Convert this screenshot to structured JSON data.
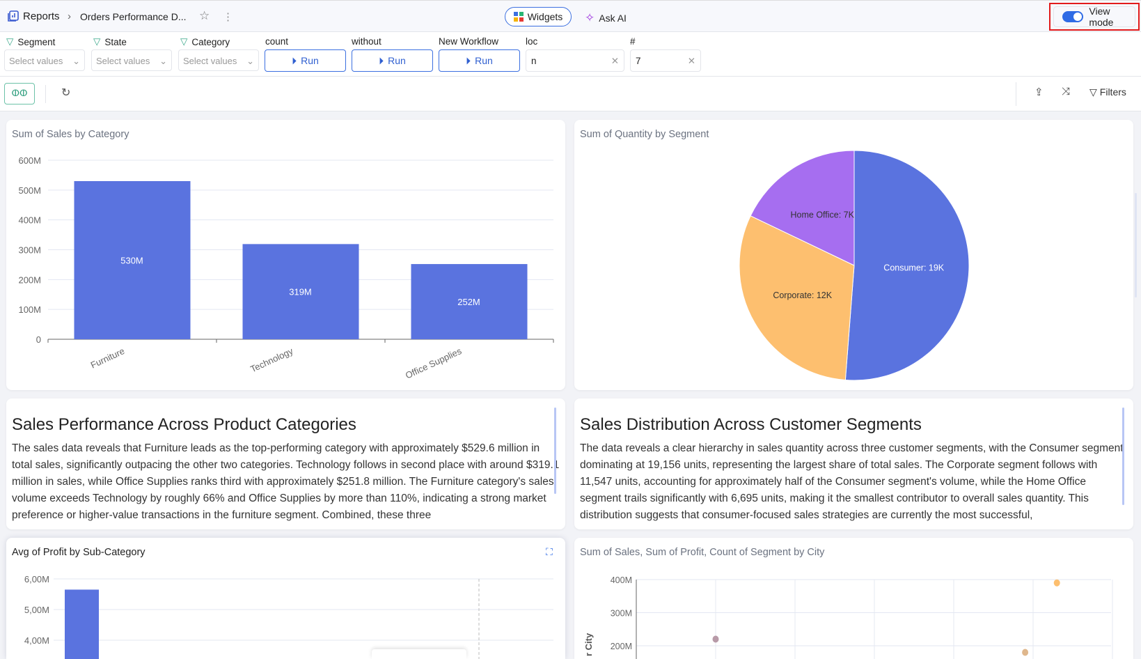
{
  "header": {
    "breadcrumb_root": "Reports",
    "breadcrumb_current": "Orders Performance D...",
    "widgets_label": "Widgets",
    "ask_ai_label": "Ask AI",
    "view_mode_label": "View mode",
    "view_mode_on": true
  },
  "filters": [
    {
      "label": "Segment",
      "placeholder": "Select values"
    },
    {
      "label": "State",
      "placeholder": "Select values"
    },
    {
      "label": "Category",
      "placeholder": "Select values"
    }
  ],
  "workflows": [
    {
      "label": "count",
      "button": "Run"
    },
    {
      "label": "without",
      "button": "Run"
    },
    {
      "label": "New Workflow",
      "button": "Run"
    }
  ],
  "inputs": [
    {
      "label": "loc",
      "value": "n"
    },
    {
      "label": "#",
      "value": "7"
    }
  ],
  "toolbar": {
    "filters_label": "Filters"
  },
  "colors": {
    "bar": "#5a73df",
    "consumer": "#5a73df",
    "corporate": "#fdbf6f",
    "home_office": "#a66ef0",
    "accent": "#2f6be5"
  },
  "chart_data": [
    {
      "type": "bar",
      "title": "Sum of Sales by Category",
      "categories": [
        "Furniture",
        "Technology",
        "Office Supplies"
      ],
      "values": [
        530,
        319,
        252
      ],
      "data_labels": [
        "530M",
        "319M",
        "252M"
      ],
      "unit": "M",
      "ylim": [
        0,
        600
      ],
      "yticks": [
        "0",
        "100M",
        "200M",
        "300M",
        "400M",
        "500M",
        "600M"
      ],
      "grid": true
    },
    {
      "type": "pie",
      "title": "Sum of Quantity by Segment",
      "labels": [
        "Consumer",
        "Corporate",
        "Home Office"
      ],
      "values": [
        19156,
        11547,
        6695
      ],
      "data_labels": [
        "Consumer: 19K",
        "Corporate: 12K",
        "Home Office: 7K"
      ]
    },
    {
      "type": "bar",
      "title": "Avg of Profit by Sub-Category",
      "values": [
        5.65
      ],
      "yticks": [
        "4,00M",
        "5,00M",
        "6,00M"
      ],
      "grid": true
    },
    {
      "type": "scatter",
      "title": "Sum of Sales, Sum of Profit, Count of Segment by City",
      "ylabel": "r City",
      "yticks": [
        "200M",
        "300M",
        "400M"
      ],
      "points": [
        {
          "x": 5.3,
          "y": 390,
          "color": "#fdbf6f"
        },
        {
          "x": 1.0,
          "y": 220,
          "color": "#b89aa8"
        },
        {
          "x": 4.9,
          "y": 180,
          "color": "#dfb78c"
        }
      ]
    }
  ],
  "insights": [
    {
      "title": "Sales Performance Across Product Categories",
      "text": "The sales data reveals that Furniture leads as the top-performing category with approximately $529.6 million in total sales, significantly outpacing the other two categories. Technology follows in second place with around $319.1 million in sales, while Office Supplies ranks third with approximately $251.8 million. The Furniture category's sales volume exceeds Technology by roughly 66% and Office Supplies by more than 110%, indicating a strong market preference or higher-value transactions in the furniture segment. Combined, these three"
    },
    {
      "title": "Sales Distribution Across Customer Segments",
      "text": "The data reveals a clear hierarchy in sales quantity across three customer segments, with the Consumer segment dominating at 19,156 units, representing the largest share of total sales. The Corporate segment follows with 11,547 units, accounting for approximately half of the Consumer segment's volume, while the Home Office segment trails significantly with 6,695 units, making it the smallest contributor to overall sales quantity. This distribution suggests that consumer-focused sales strategies are currently the most successful,"
    }
  ]
}
